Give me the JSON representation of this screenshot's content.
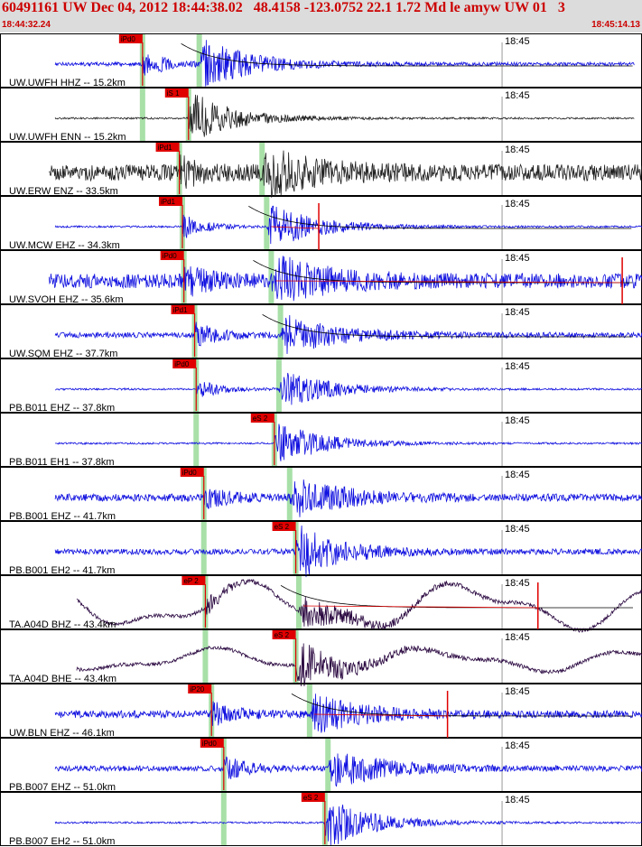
{
  "header": {
    "title": "60491161 UW Dec 04, 2012 18:44:38.02   48.4158 -123.0752 22.1 1.72 Md le amyw UW 01   3",
    "start_time": "18:44:32.24",
    "end_time": "18:45:14.13"
  },
  "colors": {
    "trace_blue": "#1010e0",
    "trace_black": "#202020",
    "trace_purple": "#2a0840",
    "pick_red": "#e00000",
    "window_green": "#a8e0a8",
    "coda_black": "#000000",
    "header_bg": "#dcdcdc"
  },
  "chart_data": {
    "type": "seismogram",
    "time_range": [
      "18:44:32.24",
      "18:45:14.13"
    ],
    "minute_tick": "18:45",
    "traces": [
      {
        "label": "UW.UWFH HHZ -- 15.2km",
        "color": "blue",
        "pick": "iPd0",
        "pick_t": 9.3,
        "s_t": 13.0,
        "end_t": 41.4,
        "amp": 28,
        "noise": 2,
        "coda": true,
        "dur_mark": false
      },
      {
        "label": "UW.UWFH ENN -- 15.2km",
        "color": "black",
        "pick": "iS 1",
        "pick_t": 12.3,
        "s_t": 12.3,
        "end_t": 41.4,
        "amp": 22,
        "noise": 1,
        "coda": false,
        "dur_mark": false,
        "green_t": 9.3
      },
      {
        "label": "UW.ERW ENZ -- 33.5km",
        "color": "black",
        "pick": "iPd1",
        "pick_t": 11.7,
        "s_t": 17.1,
        "end_t": 43.7,
        "amp": 24,
        "noise": 9,
        "coda": false,
        "dur_mark": false
      },
      {
        "label": "UW.MCW EHZ -- 34.3km",
        "color": "blue",
        "pick": "iPd1",
        "pick_t": 11.9,
        "s_t": 17.4,
        "end_t": 43.7,
        "amp": 26,
        "noise": 1,
        "coda": true,
        "dur_mark": true,
        "dur_t": 20.8
      },
      {
        "label": "UW.SVOH EHZ -- 35.6km",
        "color": "blue",
        "pick": "iPd0",
        "pick_t": 12.0,
        "s_t": 17.7,
        "end_t": 44.2,
        "amp": 27,
        "noise": 8,
        "coda": true,
        "dur_mark": true,
        "dur_t": 40.6
      },
      {
        "label": "UW.SQM EHZ -- 37.7km",
        "color": "blue",
        "pick": "iPd1",
        "pick_t": 12.7,
        "s_t": 18.3,
        "end_t": 44.1,
        "amp": 24,
        "noise": 3,
        "coda": true,
        "dur_mark": false
      },
      {
        "label": "PB.B011 EHZ -- 37.8km",
        "color": "blue",
        "pick": "iPd0",
        "pick_t": 12.8,
        "s_t": 18.2,
        "end_t": 44.6,
        "amp": 22,
        "noise": 1,
        "coda": false,
        "dur_mark": false
      },
      {
        "label": "PB.B011 EH1 -- 37.8km",
        "color": "blue",
        "pick": "eS 2",
        "pick_t": 17.9,
        "s_t": 17.9,
        "end_t": 44.6,
        "amp": 20,
        "noise": 1,
        "coda": false,
        "dur_mark": false,
        "green_t": 12.8
      },
      {
        "label": "PB.B001 EHZ -- 41.7km",
        "color": "blue",
        "pick": "iPd0",
        "pick_t": 13.3,
        "s_t": 18.9,
        "end_t": 45.0,
        "amp": 24,
        "noise": 4,
        "coda": false,
        "dur_mark": false
      },
      {
        "label": "PB.B001 EH2 -- 41.7km",
        "color": "blue",
        "pick": "eS 2",
        "pick_t": 19.3,
        "s_t": 19.3,
        "end_t": 45.0,
        "amp": 22,
        "noise": 3,
        "coda": false,
        "dur_mark": false,
        "green_t": 13.3
      },
      {
        "label": "TA.A04D BHZ -- 43.4km",
        "color": "purple",
        "pick": "eP 2",
        "pick_t": 13.4,
        "s_t": 19.5,
        "end_t": 45.3,
        "amp": 18,
        "noise": 2,
        "coda": true,
        "dur_mark": true,
        "dur_t": 35.1,
        "longperiod": 20
      },
      {
        "label": "TA.A04D BHE -- 43.4km",
        "color": "purple",
        "pick": "eS 2",
        "pick_t": 19.3,
        "s_t": 19.3,
        "end_t": 45.3,
        "amp": 20,
        "noise": 2,
        "coda": false,
        "dur_mark": false,
        "green_t": 13.4,
        "longperiod": 10
      },
      {
        "label": "UW.BLN EHZ -- 46.1km",
        "color": "blue",
        "pick": "iP20",
        "pick_t": 13.8,
        "s_t": 20.2,
        "end_t": 45.8,
        "amp": 22,
        "noise": 4,
        "coda": true,
        "dur_mark": true,
        "dur_t": 29.2
      },
      {
        "label": "PB.B007 EHZ -- 51.0km",
        "color": "blue",
        "pick": "iPd0",
        "pick_t": 14.6,
        "s_t": 21.4,
        "end_t": 45.8,
        "amp": 24,
        "noise": 3,
        "coda": false,
        "dur_mark": false
      },
      {
        "label": "PB.B007 EH2 -- 51.0km",
        "color": "blue",
        "pick": "eS 2",
        "pick_t": 21.2,
        "s_t": 21.2,
        "end_t": 45.8,
        "amp": 22,
        "noise": 1,
        "coda": false,
        "dur_mark": false,
        "green_t": 14.6
      }
    ]
  }
}
